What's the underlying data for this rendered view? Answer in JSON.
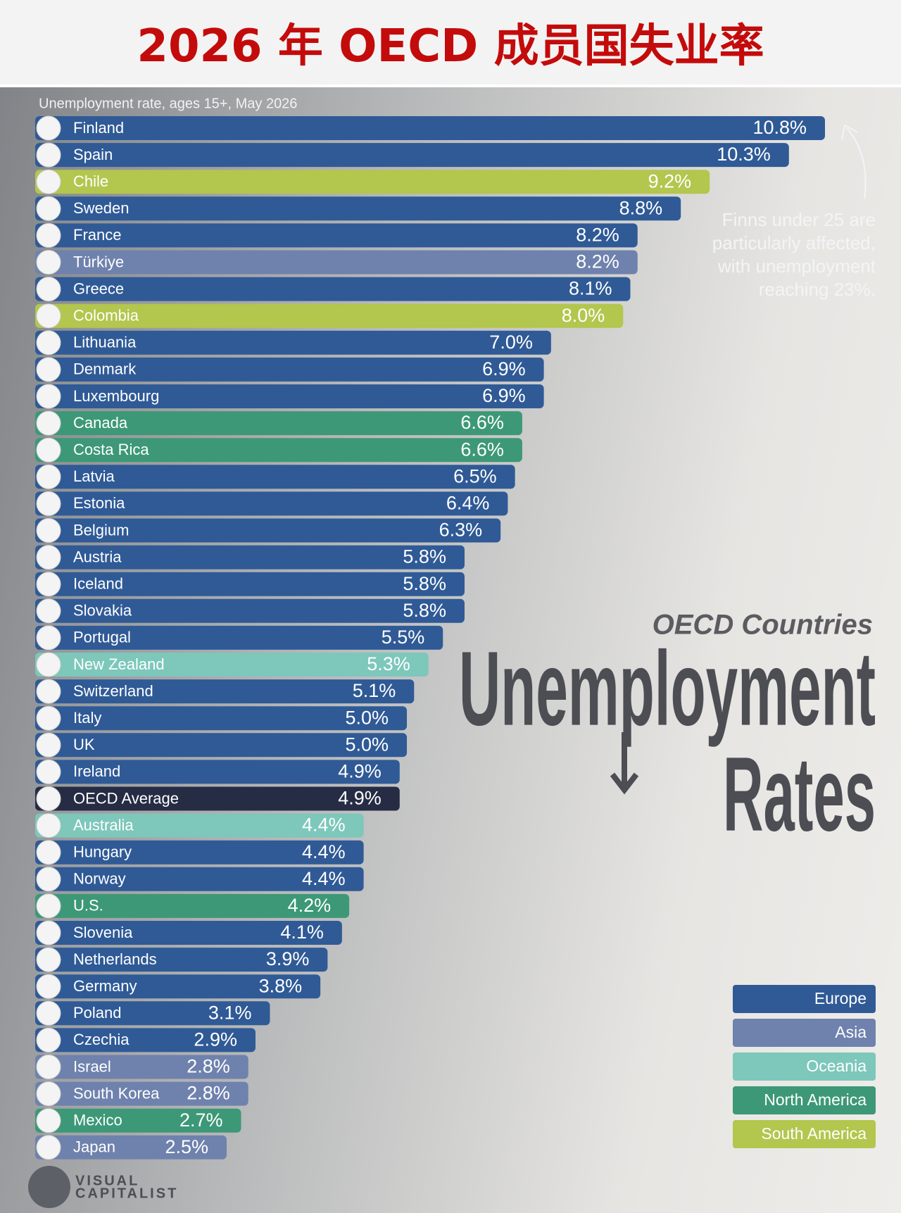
{
  "chart_data": {
    "type": "bar",
    "title": "2026 年 OECD 成员国失业率",
    "subtitle": "Unemployment rate, ages 15+, May 2026",
    "heading": "OECD Countries",
    "heading_main": [
      "Unemployment",
      "Rates"
    ],
    "annotation": "Finns under 25 are particularly affected, with unemployment reaching 23%.",
    "source_lines": [
      "VISUAL",
      "CAPITALIST"
    ],
    "categories": [
      "Finland",
      "Spain",
      "Chile",
      "Sweden",
      "France",
      "Türkiye",
      "Greece",
      "Colombia",
      "Lithuania",
      "Denmark",
      "Luxembourg",
      "Canada",
      "Costa Rica",
      "Latvia",
      "Estonia",
      "Belgium",
      "Austria",
      "Iceland",
      "Slovakia",
      "Portugal",
      "New Zealand",
      "Switzerland",
      "Italy",
      "UK",
      "Ireland",
      "OECD Average",
      "Australia",
      "Hungary",
      "Norway",
      "U.S.",
      "Slovenia",
      "Netherlands",
      "Germany",
      "Poland",
      "Czechia",
      "Israel",
      "South Korea",
      "Mexico",
      "Japan"
    ],
    "values": [
      10.8,
      10.3,
      9.2,
      8.8,
      8.2,
      8.2,
      8.1,
      8.0,
      7.0,
      6.9,
      6.9,
      6.6,
      6.6,
      6.5,
      6.4,
      6.3,
      5.8,
      5.8,
      5.8,
      5.5,
      5.3,
      5.1,
      5.0,
      5.0,
      4.9,
      4.9,
      4.4,
      4.4,
      4.4,
      4.2,
      4.1,
      3.9,
      3.8,
      3.1,
      2.9,
      2.8,
      2.8,
      2.7,
      2.5
    ],
    "value_labels": [
      "10.8%",
      "10.3%",
      "9.2%",
      "8.8%",
      "8.2%",
      "8.2%",
      "8.1%",
      "8.0%",
      "7.0%",
      "6.9%",
      "6.9%",
      "6.6%",
      "6.6%",
      "6.5%",
      "6.4%",
      "6.3%",
      "5.8%",
      "5.8%",
      "5.8%",
      "5.5%",
      "5.3%",
      "5.1%",
      "5.0%",
      "5.0%",
      "4.9%",
      "4.9%",
      "4.4%",
      "4.4%",
      "4.4%",
      "4.2%",
      "4.1%",
      "3.9%",
      "3.8%",
      "3.1%",
      "2.9%",
      "2.8%",
      "2.8%",
      "2.7%",
      "2.5%"
    ],
    "colors": [
      "#2f5a96",
      "#2f5a96",
      "#b3c64e",
      "#2f5a96",
      "#2f5a96",
      "#6f82ad",
      "#2f5a96",
      "#b3c64e",
      "#2f5a96",
      "#2f5a96",
      "#2f5a96",
      "#3d9878",
      "#3d9878",
      "#2f5a96",
      "#2f5a96",
      "#2f5a96",
      "#2f5a96",
      "#2f5a96",
      "#2f5a96",
      "#2f5a96",
      "#7dc7bb",
      "#2f5a96",
      "#2f5a96",
      "#2f5a96",
      "#2f5a96",
      "#262c44",
      "#7dc7bb",
      "#2f5a96",
      "#2f5a96",
      "#3d9878",
      "#2f5a96",
      "#2f5a96",
      "#2f5a96",
      "#2f5a96",
      "#2f5a96",
      "#6f82ad",
      "#6f82ad",
      "#3d9878",
      "#6f82ad"
    ],
    "legend": [
      {
        "name": "Europe",
        "color": "#2f5a96"
      },
      {
        "name": "Asia",
        "color": "#6f82ad"
      },
      {
        "name": "Oceania",
        "color": "#7dc7bb"
      },
      {
        "name": "North America",
        "color": "#3d9878"
      },
      {
        "name": "South America",
        "color": "#b3c64e"
      }
    ]
  }
}
